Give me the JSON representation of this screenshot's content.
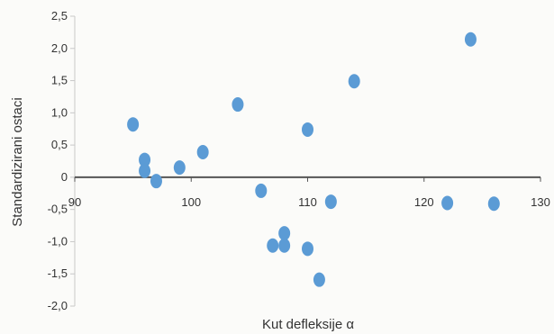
{
  "chart_data": {
    "type": "scatter",
    "title": "",
    "xlabel": "Kut defleksije α",
    "ylabel": "Standardizirani ostaci",
    "xlim": [
      90,
      130
    ],
    "ylim": [
      -2.0,
      2.5
    ],
    "x_ticks": [
      "90",
      "100",
      "110",
      "120",
      "130"
    ],
    "x_tick_values": [
      90,
      100,
      110,
      120,
      130
    ],
    "y_ticks": [
      "2,5",
      "2,0",
      "1,5",
      "1,0",
      "0,5",
      "0",
      "-0,5",
      "-1,0",
      "-1,5",
      "-2,0"
    ],
    "y_tick_values": [
      2.5,
      2.0,
      1.5,
      1.0,
      0.5,
      0,
      -0.5,
      -1.0,
      -1.5,
      -2.0
    ],
    "grid": false,
    "series": [
      {
        "color": "#5b9bd5",
        "points": [
          {
            "x": 95,
            "y": 0.82
          },
          {
            "x": 96,
            "y": 0.27
          },
          {
            "x": 96,
            "y": 0.1
          },
          {
            "x": 97,
            "y": -0.06
          },
          {
            "x": 99,
            "y": 0.15
          },
          {
            "x": 101,
            "y": 0.39
          },
          {
            "x": 104,
            "y": 1.13
          },
          {
            "x": 106,
            "y": -0.21
          },
          {
            "x": 107,
            "y": -1.06
          },
          {
            "x": 108,
            "y": -0.87
          },
          {
            "x": 108,
            "y": -1.06
          },
          {
            "x": 110,
            "y": 0.74
          },
          {
            "x": 110,
            "y": -1.11
          },
          {
            "x": 111,
            "y": -1.59
          },
          {
            "x": 112,
            "y": -0.38
          },
          {
            "x": 114,
            "y": 1.49
          },
          {
            "x": 122,
            "y": -0.4
          },
          {
            "x": 124,
            "y": 2.14
          },
          {
            "x": 126,
            "y": -0.41
          }
        ]
      }
    ]
  },
  "colors": {
    "marker": "#5b9bd5",
    "zero_line": "#555555",
    "tick_mark": "#c8c8c8"
  }
}
